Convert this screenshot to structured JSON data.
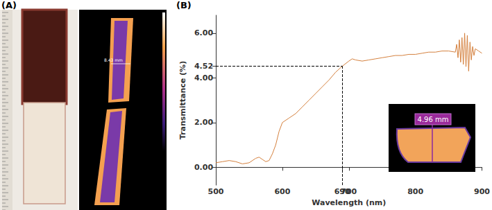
{
  "chart_data": {
    "type": "line",
    "panel_labels": [
      "(A)",
      "(B)"
    ],
    "annotations": [
      "8.43 mm",
      "4.96 mm"
    ],
    "x_label": "Wavelength (nm)",
    "y_label": "Transmittance (%)",
    "reference": {
      "x": 690,
      "y": 4.52
    },
    "x": [
      500,
      510,
      520,
      530,
      540,
      550,
      560,
      565,
      570,
      575,
      580,
      585,
      590,
      595,
      600,
      610,
      620,
      630,
      640,
      650,
      660,
      670,
      680,
      690,
      700,
      705,
      710,
      720,
      730,
      740,
      750,
      760,
      770,
      780,
      790,
      800,
      810,
      820,
      830,
      840,
      850,
      860,
      862,
      864,
      866,
      868,
      870,
      872,
      874,
      876,
      878,
      880,
      882,
      884,
      886,
      888,
      890,
      895,
      900
    ],
    "values": [
      0.2,
      0.25,
      0.3,
      0.25,
      0.15,
      0.2,
      0.4,
      0.45,
      0.35,
      0.25,
      0.3,
      0.6,
      1.0,
      1.6,
      2.0,
      2.2,
      2.4,
      2.7,
      3.0,
      3.3,
      3.6,
      3.9,
      4.25,
      4.52,
      4.75,
      4.85,
      4.8,
      4.75,
      4.8,
      4.85,
      4.9,
      4.95,
      5.0,
      5.0,
      5.05,
      5.05,
      5.1,
      5.15,
      5.15,
      5.2,
      5.2,
      5.15,
      5.5,
      4.9,
      5.7,
      4.7,
      5.8,
      4.6,
      6.0,
      4.5,
      5.9,
      4.3,
      5.6,
      4.8,
      5.4,
      5.0,
      5.3,
      5.2,
      5.1
    ],
    "color": "#d4803e",
    "xlim": [
      500,
      900
    ],
    "ylim": [
      -0.8,
      6.8
    ],
    "xticks": [
      500,
      600,
      690,
      700,
      800,
      900
    ],
    "yticks": [
      {
        "value": 0,
        "label": "0.00"
      },
      {
        "value": 2,
        "label": "2.00"
      },
      {
        "value": 4,
        "label": "4.00"
      },
      {
        "value": 4.52,
        "label": "4.52"
      },
      {
        "value": 6,
        "label": "6.00"
      }
    ],
    "grid": false
  }
}
